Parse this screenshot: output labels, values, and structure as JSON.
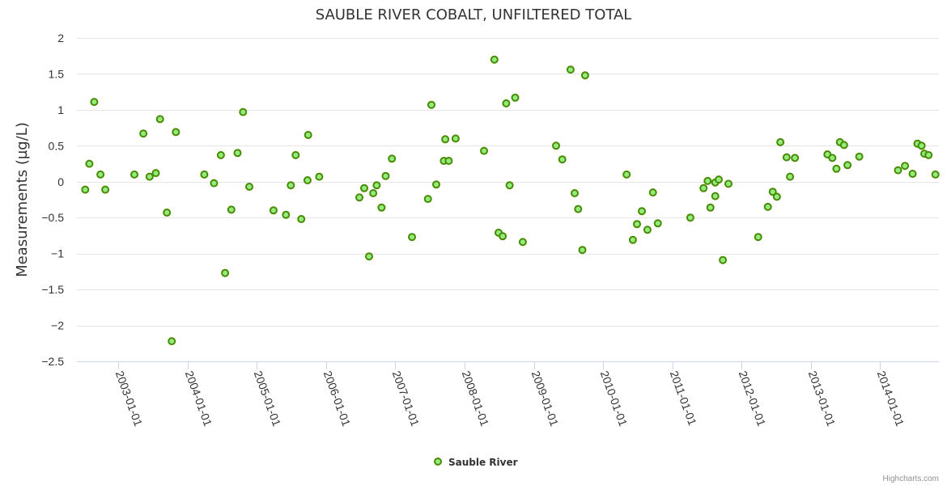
{
  "credits": "Highcharts.com",
  "chart_data": {
    "type": "scatter",
    "title": "SAUBLE RIVER COBALT, UNFILTERED TOTAL",
    "xlabel": "",
    "ylabel": "Measurements (µg/L)",
    "ylim": [
      -2.5,
      2
    ],
    "yticks": [
      {
        "value": 2,
        "label": "2"
      },
      {
        "value": 1.5,
        "label": "1.5"
      },
      {
        "value": 1,
        "label": "1"
      },
      {
        "value": 0.5,
        "label": "0.5"
      },
      {
        "value": 0,
        "label": "0"
      },
      {
        "value": -0.5,
        "label": "−0.5"
      },
      {
        "value": -1,
        "label": "−1"
      },
      {
        "value": -1.5,
        "label": "−1.5"
      },
      {
        "value": -2,
        "label": "−2"
      },
      {
        "value": -2.5,
        "label": "−2.5"
      }
    ],
    "xlim": [
      2002.4,
      2014.85
    ],
    "xticks": [
      {
        "value": 2003,
        "label": "2003-01-01"
      },
      {
        "value": 2004,
        "label": "2004-01-01"
      },
      {
        "value": 2005,
        "label": "2005-01-01"
      },
      {
        "value": 2006,
        "label": "2006-01-01"
      },
      {
        "value": 2007,
        "label": "2007-01-01"
      },
      {
        "value": 2008,
        "label": "2008-01-01"
      },
      {
        "value": 2009,
        "label": "2009-01-01"
      },
      {
        "value": 2010,
        "label": "2010-01-01"
      },
      {
        "value": 2011,
        "label": "2011-01-01"
      },
      {
        "value": 2012,
        "label": "2012-01-01"
      },
      {
        "value": 2013,
        "label": "2013-01-01"
      },
      {
        "value": 2014,
        "label": "2014-01-01"
      }
    ],
    "grid": true,
    "legend_position": "bottom-center",
    "series": [
      {
        "name": "Sauble River",
        "color": "#90ed7d",
        "stroke": "#4a8a00",
        "points": [
          [
            2002.52,
            -0.11
          ],
          [
            2002.58,
            0.25
          ],
          [
            2002.65,
            1.11
          ],
          [
            2002.74,
            0.1
          ],
          [
            2002.81,
            -0.11
          ],
          [
            2003.23,
            0.1
          ],
          [
            2003.36,
            0.67
          ],
          [
            2003.45,
            0.07
          ],
          [
            2003.54,
            0.12
          ],
          [
            2003.6,
            0.87
          ],
          [
            2003.7,
            -0.43
          ],
          [
            2003.77,
            -2.22
          ],
          [
            2003.83,
            0.69
          ],
          [
            2004.24,
            0.1
          ],
          [
            2004.38,
            -0.02
          ],
          [
            2004.48,
            0.37
          ],
          [
            2004.54,
            -1.27
          ],
          [
            2004.63,
            -0.39
          ],
          [
            2004.72,
            0.4
          ],
          [
            2004.8,
            0.97
          ],
          [
            2004.89,
            -0.07
          ],
          [
            2005.24,
            -0.4
          ],
          [
            2005.42,
            -0.46
          ],
          [
            2005.49,
            -0.05
          ],
          [
            2005.56,
            0.37
          ],
          [
            2005.64,
            -0.52
          ],
          [
            2005.73,
            0.02
          ],
          [
            2005.74,
            0.65
          ],
          [
            2005.9,
            0.07
          ],
          [
            2006.48,
            -0.22
          ],
          [
            2006.55,
            -0.09
          ],
          [
            2006.62,
            -1.04
          ],
          [
            2006.68,
            -0.16
          ],
          [
            2006.73,
            -0.05
          ],
          [
            2006.8,
            -0.36
          ],
          [
            2006.86,
            0.08
          ],
          [
            2006.95,
            0.32
          ],
          [
            2007.24,
            -0.77
          ],
          [
            2007.47,
            -0.24
          ],
          [
            2007.52,
            1.07
          ],
          [
            2007.59,
            -0.04
          ],
          [
            2007.7,
            0.29
          ],
          [
            2007.72,
            0.59
          ],
          [
            2007.77,
            0.29
          ],
          [
            2007.87,
            0.6
          ],
          [
            2008.28,
            0.43
          ],
          [
            2008.43,
            1.7
          ],
          [
            2008.49,
            -0.71
          ],
          [
            2008.55,
            -0.76
          ],
          [
            2008.6,
            1.09
          ],
          [
            2008.65,
            -0.05
          ],
          [
            2008.73,
            1.17
          ],
          [
            2008.84,
            -0.84
          ],
          [
            2009.32,
            0.5
          ],
          [
            2009.41,
            0.31
          ],
          [
            2009.53,
            1.56
          ],
          [
            2009.59,
            -0.16
          ],
          [
            2009.64,
            -0.38
          ],
          [
            2009.7,
            -0.95
          ],
          [
            2009.74,
            1.48
          ],
          [
            2010.34,
            0.1
          ],
          [
            2010.43,
            -0.81
          ],
          [
            2010.49,
            -0.59
          ],
          [
            2010.56,
            -0.41
          ],
          [
            2010.64,
            -0.67
          ],
          [
            2010.72,
            -0.15
          ],
          [
            2010.79,
            -0.58
          ],
          [
            2011.26,
            -0.5
          ],
          [
            2011.45,
            -0.09
          ],
          [
            2011.51,
            0.01
          ],
          [
            2011.55,
            -0.36
          ],
          [
            2011.62,
            -0.01
          ],
          [
            2011.62,
            -0.2
          ],
          [
            2011.67,
            0.03
          ],
          [
            2011.73,
            -1.09
          ],
          [
            2011.81,
            -0.03
          ],
          [
            2012.24,
            -0.77
          ],
          [
            2012.38,
            -0.35
          ],
          [
            2012.45,
            -0.14
          ],
          [
            2012.51,
            -0.21
          ],
          [
            2012.56,
            0.55
          ],
          [
            2012.65,
            0.34
          ],
          [
            2012.7,
            0.07
          ],
          [
            2012.77,
            0.33
          ],
          [
            2013.24,
            0.38
          ],
          [
            2013.31,
            0.33
          ],
          [
            2013.37,
            0.18
          ],
          [
            2013.42,
            0.55
          ],
          [
            2013.48,
            0.51
          ],
          [
            2013.53,
            0.23
          ],
          [
            2013.7,
            0.35
          ],
          [
            2014.26,
            0.16
          ],
          [
            2014.36,
            0.22
          ],
          [
            2014.47,
            0.11
          ],
          [
            2014.54,
            0.53
          ],
          [
            2014.6,
            0.5
          ],
          [
            2014.64,
            0.39
          ],
          [
            2014.7,
            0.37
          ],
          [
            2014.8,
            0.1
          ]
        ]
      }
    ]
  }
}
